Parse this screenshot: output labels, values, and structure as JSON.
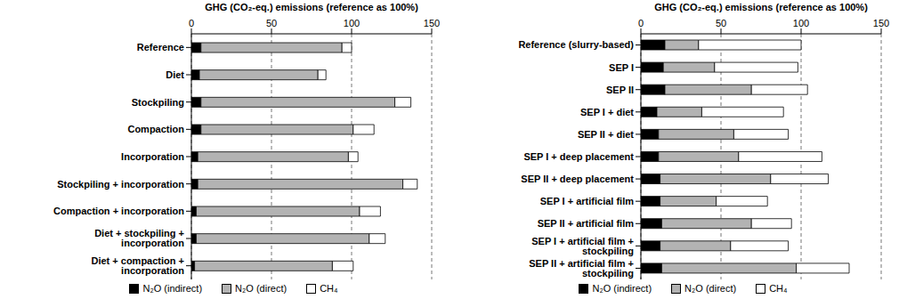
{
  "chart_data": [
    {
      "type": "bar",
      "orientation": "horizontal",
      "stacked": true,
      "grid": true,
      "legend": "bottom",
      "title": "GHG (CO₂-eq.) emissions (reference as 100%)",
      "categories": [
        "Reference",
        "Diet",
        "Stockpiling",
        "Compaction",
        "Incorporation",
        "Stockpiling + incorporation",
        "Compaction + incorporation",
        "Diet + stockpiling + incorporation",
        "Diet + compaction + incorporation"
      ],
      "series": [
        {
          "name": "N₂O (indirect)",
          "color": "#000000",
          "values": [
            6,
            5,
            6,
            6,
            4,
            4,
            3,
            3,
            2
          ]
        },
        {
          "name": "N₂O (direct)",
          "color": "#b3b3b3",
          "values": [
            88,
            74,
            121,
            95,
            94,
            128,
            102,
            108,
            86
          ]
        },
        {
          "name": "CH₄",
          "color": "#ffffff",
          "values": [
            6,
            5,
            10,
            13,
            6,
            9,
            13,
            10,
            13
          ]
        }
      ],
      "xlim": [
        0,
        150
      ],
      "xticks": [
        0,
        50,
        100,
        150
      ]
    },
    {
      "type": "bar",
      "orientation": "horizontal",
      "stacked": true,
      "grid": true,
      "legend": "bottom",
      "title": "GHG (CO₂-eq.) emissions (reference as 100%)",
      "categories": [
        "Reference (slurry-based)",
        "SEP I",
        "SEP II",
        "SEP I + diet",
        "SEP II + diet",
        "SEP I + deep placement",
        "SEP II + deep placement",
        "SEP I + artificial film",
        "SEP II + artificial film",
        "SEP I + artificial film + stockpiling",
        "SEP II + artificial film + stockpiling"
      ],
      "series": [
        {
          "name": "N₂O (indirect)",
          "color": "#000000",
          "values": [
            15,
            14,
            15,
            10,
            11,
            11,
            12,
            12,
            13,
            12,
            13
          ]
        },
        {
          "name": "N₂O (direct)",
          "color": "#b3b3b3",
          "values": [
            21,
            32,
            54,
            28,
            47,
            50,
            69,
            35,
            56,
            44,
            84
          ]
        },
        {
          "name": "CH₄",
          "color": "#ffffff",
          "values": [
            64,
            52,
            35,
            51,
            34,
            52,
            36,
            32,
            25,
            36,
            33
          ]
        }
      ],
      "xlim": [
        0,
        150
      ],
      "xticks": [
        0,
        50,
        100,
        150
      ]
    }
  ]
}
